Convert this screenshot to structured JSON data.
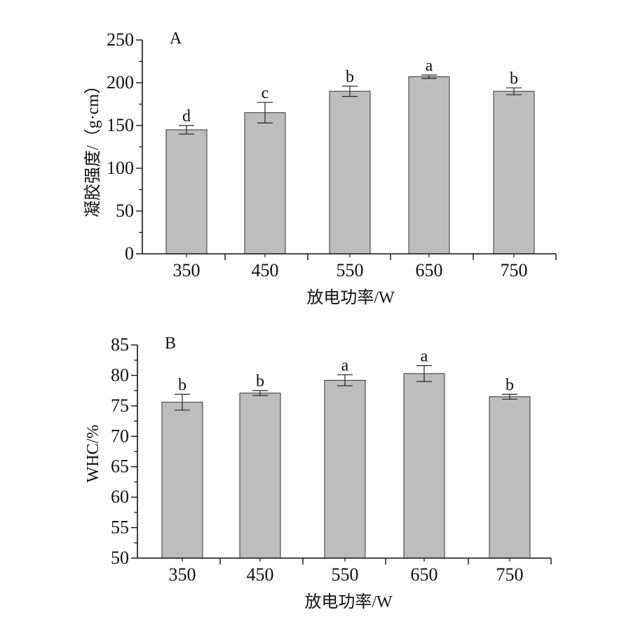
{
  "chart_data": [
    {
      "type": "bar",
      "panel_label": "A",
      "categories": [
        "350",
        "450",
        "550",
        "650",
        "750"
      ],
      "values": [
        145,
        165,
        190,
        207,
        190
      ],
      "errors": [
        5,
        12,
        6,
        2,
        4
      ],
      "significance": [
        "d",
        "c",
        "b",
        "a",
        "b"
      ],
      "xlabel": "放电功率/W",
      "ylabel": "凝胶强度/（g·cm）",
      "ylim": [
        0,
        250
      ],
      "yticks": [
        0,
        50,
        100,
        150,
        200,
        250
      ],
      "bar_color": "#bdbdbd",
      "grid": false
    },
    {
      "type": "bar",
      "panel_label": "B",
      "categories": [
        "350",
        "450",
        "550",
        "650",
        "750"
      ],
      "values": [
        75.6,
        77.1,
        79.2,
        80.3,
        76.5
      ],
      "errors": [
        1.3,
        0.4,
        0.9,
        1.3,
        0.4
      ],
      "significance": [
        "b",
        "b",
        "a",
        "a",
        "b"
      ],
      "xlabel": "放电功率/W",
      "ylabel": "WHC/%",
      "ylim": [
        50,
        85
      ],
      "yticks": [
        50,
        55,
        60,
        65,
        70,
        75,
        80,
        85
      ],
      "bar_color": "#bdbdbd",
      "grid": false
    }
  ]
}
